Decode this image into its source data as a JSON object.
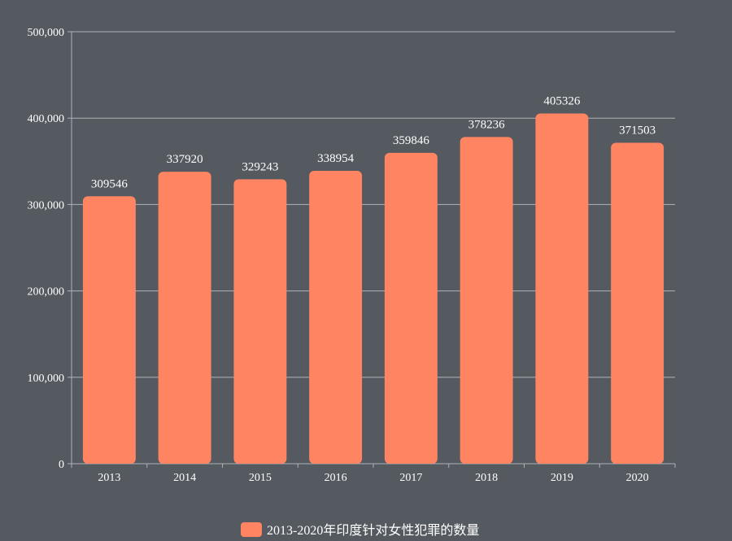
{
  "chart_data": {
    "type": "bar",
    "categories": [
      "2013",
      "2014",
      "2015",
      "2016",
      "2017",
      "2018",
      "2019",
      "2020"
    ],
    "series": [
      {
        "name": "2013-2020年印度针对女性犯罪的数量",
        "values": [
          309546,
          337920,
          329243,
          338954,
          359846,
          378236,
          405326,
          371503
        ]
      }
    ],
    "ylim": [
      0,
      500000
    ],
    "yticks": [
      "0",
      "100,000",
      "200,000",
      "300,000",
      "400,000",
      "500,000"
    ],
    "yticks_values": [
      0,
      100000,
      200000,
      300000,
      400000,
      500000
    ],
    "grid": true,
    "legend": "bottom-center",
    "title": "",
    "xlabel": "",
    "ylabel": ""
  },
  "colors": {
    "background": "#545a60",
    "bar": "#ff8562",
    "grid": "#aeb3b8",
    "text": "#ffffff"
  }
}
